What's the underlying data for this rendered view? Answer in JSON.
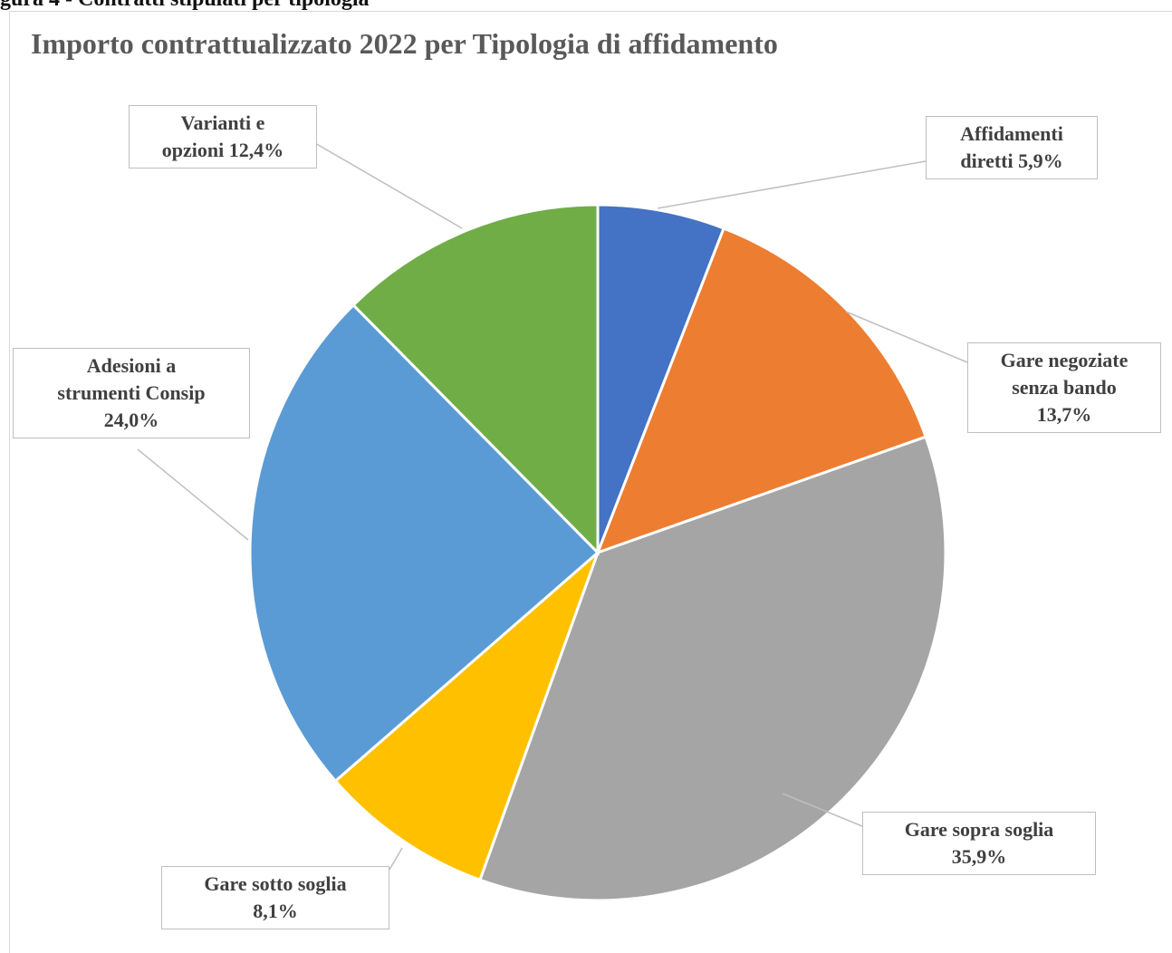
{
  "caption": "gura 4 - Contratti stipulati per tipologia",
  "chart_data": {
    "type": "pie",
    "title": "Importo contrattualizzato 2022 per Tipologia di affidamento",
    "start_angle_deg": 0,
    "direction": "clockwise",
    "slices": [
      {
        "label": "Affidamenti diretti",
        "value": 5.9,
        "display": "5,9%",
        "color": "#4472C4"
      },
      {
        "label": "Gare negoziate senza bando",
        "value": 13.7,
        "display": "13,7%",
        "color": "#ED7D31"
      },
      {
        "label": "Gare sopra soglia",
        "value": 35.9,
        "display": "35,9%",
        "color": "#A5A5A5"
      },
      {
        "label": "Gare sotto soglia",
        "value": 8.1,
        "display": "8,1%",
        "color": "#FFC000"
      },
      {
        "label": "Adesioni a strumenti Consip",
        "value": 24.0,
        "display": "24,0%",
        "color": "#5B9BD5"
      },
      {
        "label": "Varianti e opzioni",
        "value": 12.4,
        "display": "12,4%",
        "color": "#70AD47"
      }
    ],
    "labels": {
      "affidamenti": [
        "Affidamenti",
        "diretti 5,9%"
      ],
      "negoziate": [
        "Gare negoziate",
        "senza bando",
        "13,7%"
      ],
      "sopra": [
        "Gare sopra soglia",
        "35,9%"
      ],
      "sotto": [
        "Gare sotto soglia",
        "8,1%"
      ],
      "consip": [
        "Adesioni a",
        "strumenti Consip",
        "24,0%"
      ],
      "varianti": [
        "Varianti e",
        "opzioni 12,4%"
      ]
    },
    "leader_line_color": "#bfbfbf",
    "legend": "none"
  }
}
